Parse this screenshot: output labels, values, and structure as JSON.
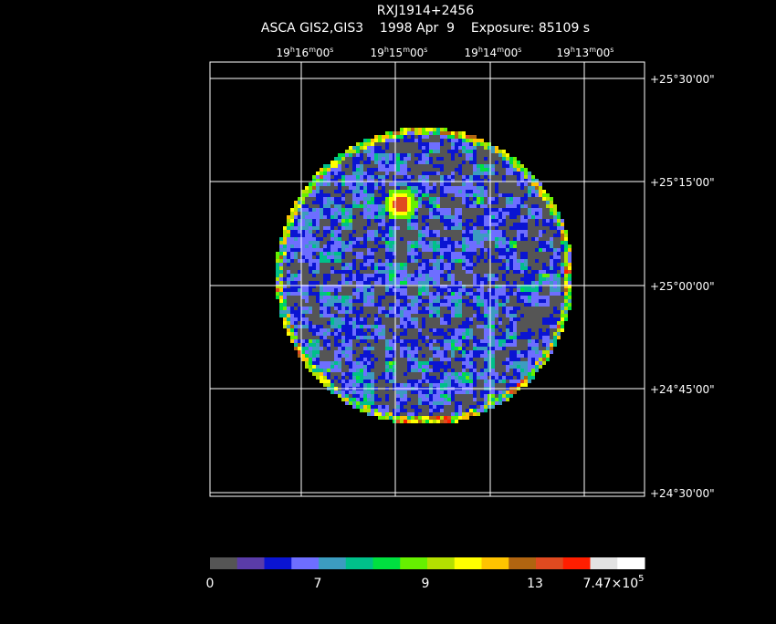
{
  "header": {
    "title": "RXJ1914+2456",
    "subtitle": "ASCA GIS2,GIS3    1998 Apr  9    Exposure: 85109 s"
  },
  "ra_labels": [
    [
      "19",
      "h",
      "16",
      "m",
      "00",
      "s"
    ],
    [
      "19",
      "h",
      "15",
      "m",
      "00",
      "s"
    ],
    [
      "19",
      "h",
      "14",
      "m",
      "00",
      "s"
    ],
    [
      "19",
      "h",
      "13",
      "m",
      "00",
      "s"
    ]
  ],
  "dec_labels": [
    "+25°30'00\"",
    "+25°15'00\"",
    "+25°00'00\"",
    "+24°45'00\"",
    "+24°30'00\""
  ],
  "colorbar": {
    "colors": [
      "#555555",
      "#5a3ca8",
      "#0a14d2",
      "#6e6eff",
      "#3c9cc0",
      "#00c08a",
      "#00e040",
      "#66f000",
      "#b4e000",
      "#ffff00",
      "#ffc400",
      "#b06410",
      "#e04a20",
      "#ff1e00",
      "#e2e2e2",
      "#ffffff"
    ],
    "labels": [
      [
        "0"
      ],
      [
        "7"
      ],
      [
        "9"
      ],
      [
        "13"
      ],
      [
        "7.47×10",
        "5"
      ]
    ]
  }
}
